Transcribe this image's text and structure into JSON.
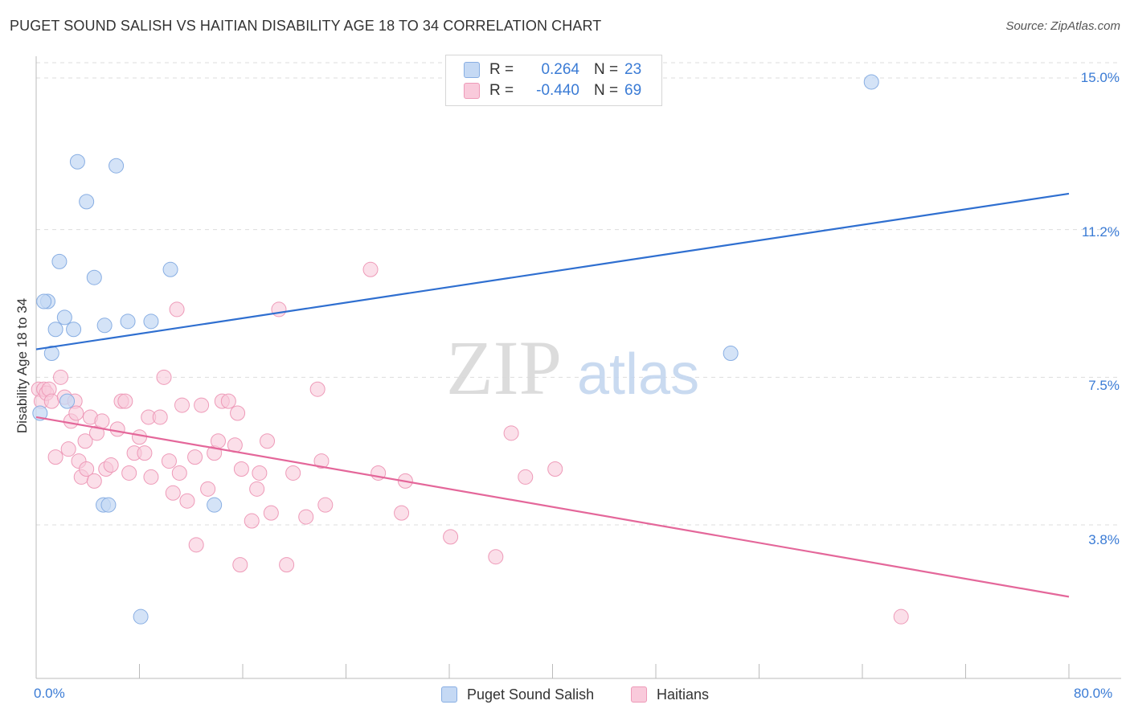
{
  "header": {
    "title": "PUGET SOUND SALISH VS HAITIAN DISABILITY AGE 18 TO 34 CORRELATION CHART",
    "source": "Source: ZipAtlas.com"
  },
  "legend": {
    "rows": [
      {
        "r_label": "R =",
        "r_value": "0.264",
        "n_label": "N =",
        "n_value": "23"
      },
      {
        "r_label": "R =",
        "r_value": "-0.440",
        "n_label": "N =",
        "n_value": "69"
      }
    ]
  },
  "watermark": {
    "zip": "ZIP",
    "atlas": "atlas"
  },
  "colors": {
    "series_a_fill": "#c5d9f4",
    "series_a_stroke": "#88aee3",
    "series_a_line": "#2f6fd0",
    "series_b_fill": "#f9cadb",
    "series_b_stroke": "#ee9ab8",
    "series_b_line": "#e4679a",
    "grid": "#dddddd",
    "tick_text": "#3a7bd5"
  },
  "chart_data": {
    "type": "scatter",
    "title": "PUGET SOUND SALISH VS HAITIAN DISABILITY AGE 18 TO 34 CORRELATION CHART",
    "xlabel": "",
    "ylabel": "Disability Age 18 to 34",
    "xlim": [
      0,
      80
    ],
    "ylim": [
      0,
      15.8
    ],
    "x_tick_labels": [
      "0.0%",
      "80.0%"
    ],
    "y_ticks": [
      3.8,
      7.5,
      11.2,
      15.0
    ],
    "y_tick_labels": [
      "3.8%",
      "7.5%",
      "11.2%",
      "15.0%"
    ],
    "grid": true,
    "legend_position": "top-center",
    "series": [
      {
        "name": "Puget Sound Salish",
        "color": "#88aee3",
        "points": [
          [
            0.3,
            6.6
          ],
          [
            0.9,
            9.4
          ],
          [
            1.2,
            8.1
          ],
          [
            1.5,
            8.7
          ],
          [
            1.8,
            10.4
          ],
          [
            2.2,
            9.0
          ],
          [
            2.4,
            6.9
          ],
          [
            2.9,
            8.7
          ],
          [
            3.2,
            12.9
          ],
          [
            3.9,
            11.9
          ],
          [
            4.5,
            10.0
          ],
          [
            5.2,
            4.3
          ],
          [
            5.6,
            4.3
          ],
          [
            5.3,
            8.8
          ],
          [
            6.2,
            12.8
          ],
          [
            7.1,
            8.9
          ],
          [
            8.1,
            1.5
          ],
          [
            8.9,
            8.9
          ],
          [
            10.4,
            10.2
          ],
          [
            13.8,
            4.3
          ],
          [
            53.8,
            8.1
          ],
          [
            64.7,
            14.9
          ],
          [
            0.6,
            9.4
          ]
        ],
        "trend": {
          "x": [
            0,
            80
          ],
          "y": [
            8.2,
            12.1
          ]
        }
      },
      {
        "name": "Haitians",
        "color": "#ee9ab8",
        "points": [
          [
            0.2,
            7.2
          ],
          [
            0.4,
            6.9
          ],
          [
            0.6,
            7.2
          ],
          [
            0.8,
            7.1
          ],
          [
            1.0,
            7.2
          ],
          [
            1.2,
            6.9
          ],
          [
            1.5,
            5.5
          ],
          [
            1.9,
            7.5
          ],
          [
            2.2,
            7.0
          ],
          [
            2.5,
            5.7
          ],
          [
            2.7,
            6.4
          ],
          [
            3.0,
            6.9
          ],
          [
            3.1,
            6.6
          ],
          [
            3.3,
            5.4
          ],
          [
            3.5,
            5.0
          ],
          [
            3.8,
            5.9
          ],
          [
            3.9,
            5.2
          ],
          [
            4.2,
            6.5
          ],
          [
            4.5,
            4.9
          ],
          [
            4.7,
            6.1
          ],
          [
            5.1,
            6.4
          ],
          [
            5.4,
            5.2
          ],
          [
            5.8,
            5.3
          ],
          [
            6.3,
            6.2
          ],
          [
            6.6,
            6.9
          ],
          [
            6.9,
            6.9
          ],
          [
            7.2,
            5.1
          ],
          [
            7.6,
            5.6
          ],
          [
            8.0,
            6.0
          ],
          [
            8.4,
            5.6
          ],
          [
            8.7,
            6.5
          ],
          [
            8.9,
            5.0
          ],
          [
            9.6,
            6.5
          ],
          [
            9.9,
            7.5
          ],
          [
            10.3,
            5.4
          ],
          [
            10.6,
            4.6
          ],
          [
            10.9,
            9.2
          ],
          [
            11.1,
            5.1
          ],
          [
            11.3,
            6.8
          ],
          [
            11.7,
            4.4
          ],
          [
            12.3,
            5.5
          ],
          [
            12.4,
            3.3
          ],
          [
            12.8,
            6.8
          ],
          [
            13.3,
            4.7
          ],
          [
            13.8,
            5.6
          ],
          [
            14.1,
            5.9
          ],
          [
            14.4,
            6.9
          ],
          [
            14.9,
            6.9
          ],
          [
            15.4,
            5.8
          ],
          [
            15.6,
            6.6
          ],
          [
            15.8,
            2.8
          ],
          [
            15.9,
            5.2
          ],
          [
            16.7,
            3.9
          ],
          [
            17.1,
            4.7
          ],
          [
            17.3,
            5.1
          ],
          [
            17.9,
            5.9
          ],
          [
            18.2,
            4.1
          ],
          [
            18.8,
            9.2
          ],
          [
            19.4,
            2.8
          ],
          [
            19.9,
            5.1
          ],
          [
            20.9,
            4.0
          ],
          [
            21.8,
            7.2
          ],
          [
            22.1,
            5.4
          ],
          [
            22.4,
            4.3
          ],
          [
            25.9,
            10.2
          ],
          [
            26.5,
            5.1
          ],
          [
            28.3,
            4.1
          ],
          [
            28.6,
            4.9
          ],
          [
            32.1,
            3.5
          ]
        ],
        "extra_points": [
          [
            35.6,
            3.0
          ],
          [
            36.8,
            6.1
          ],
          [
            37.9,
            5.0
          ],
          [
            40.2,
            5.2
          ],
          [
            67.0,
            1.5
          ]
        ],
        "trend": {
          "x": [
            0,
            80
          ],
          "y": [
            6.5,
            2.0
          ]
        }
      }
    ]
  },
  "bottom_legend": {
    "items": [
      {
        "label": "Puget Sound Salish"
      },
      {
        "label": "Haitians"
      }
    ]
  }
}
